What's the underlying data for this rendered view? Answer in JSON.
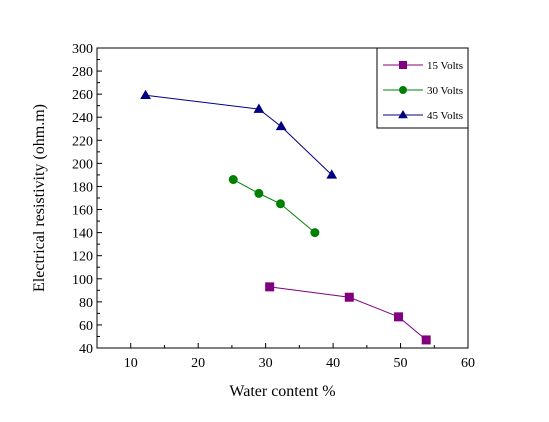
{
  "chart_data": {
    "type": "line",
    "title": "",
    "xlabel": "Water content %",
    "ylabel": "Electrical resistivity (ohm.m)",
    "xlim": [
      5,
      60
    ],
    "ylim": [
      40,
      300
    ],
    "xticks": [
      10,
      20,
      30,
      40,
      50,
      60
    ],
    "yticks": [
      40,
      60,
      80,
      100,
      120,
      140,
      160,
      180,
      200,
      220,
      240,
      260,
      280,
      300
    ],
    "grid": false,
    "legend_position": "top-right",
    "series": [
      {
        "name": "15 Volts",
        "color": "#800080",
        "marker": "square",
        "x": [
          30.6,
          42.4,
          49.7,
          53.8
        ],
        "y": [
          93,
          84,
          67,
          47
        ]
      },
      {
        "name": "30 Volts",
        "color": "#008000",
        "marker": "circle",
        "x": [
          25.2,
          29.0,
          32.2,
          37.3
        ],
        "y": [
          186,
          174,
          165,
          140
        ]
      },
      {
        "name": "45 Volts",
        "color": "#000080",
        "marker": "triangle",
        "x": [
          12.2,
          29.0,
          32.3,
          39.8
        ],
        "y": [
          259,
          247,
          232,
          190
        ]
      }
    ]
  }
}
